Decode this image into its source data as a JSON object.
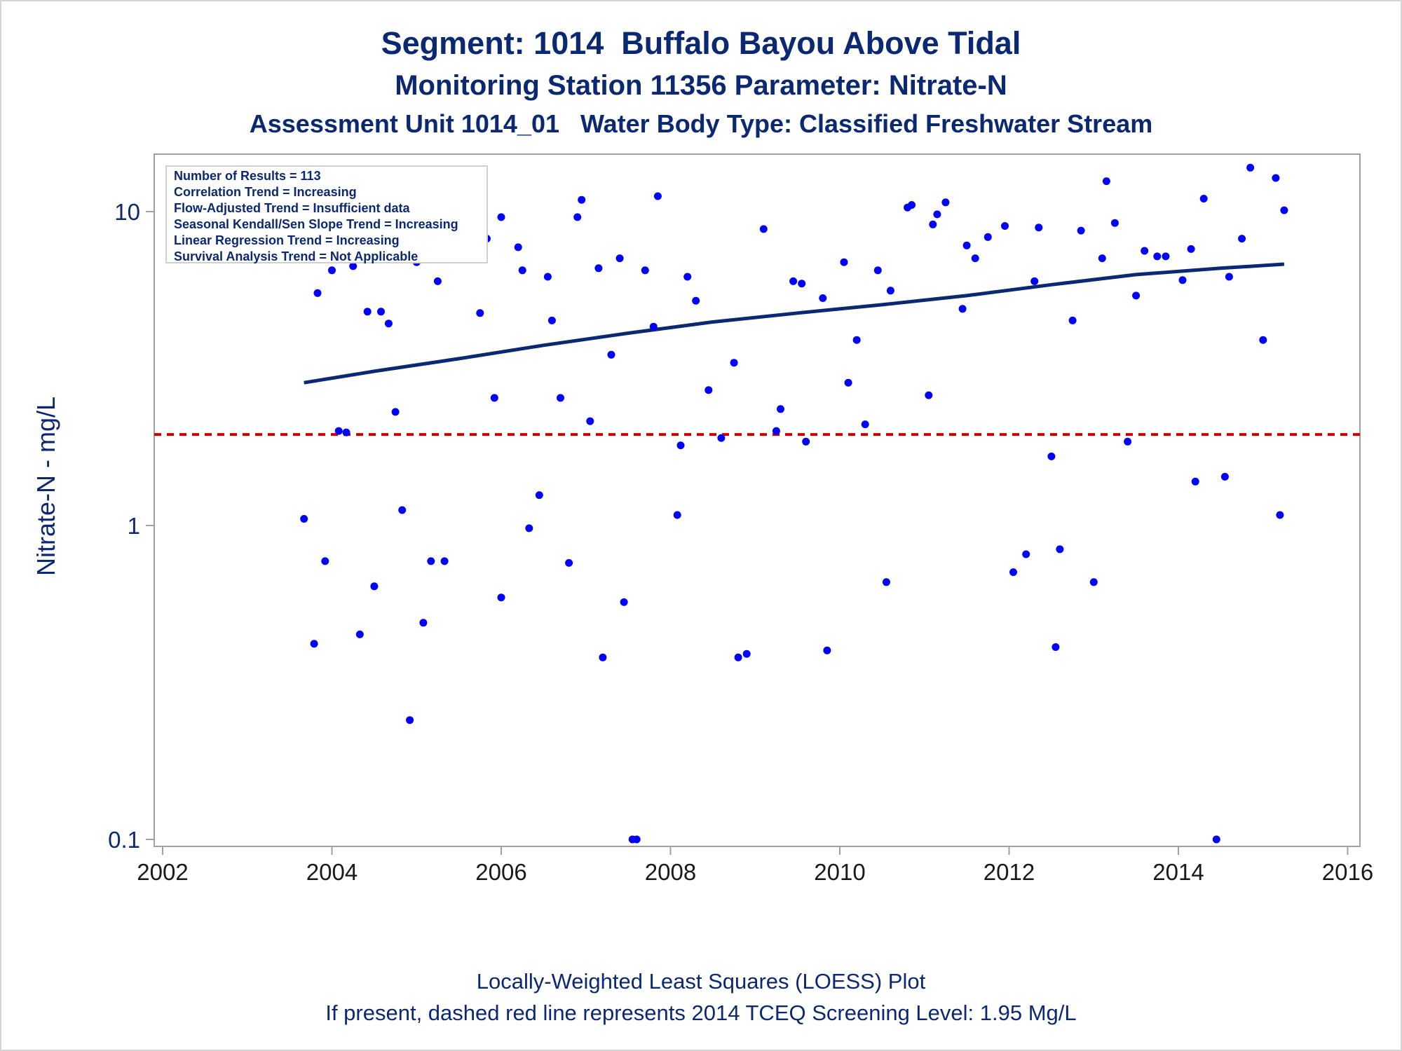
{
  "titles": {
    "line1": "Segment: 1014  Buffalo Bayou Above Tidal",
    "line2": "Monitoring Station 11356 Parameter: Nitrate-N",
    "line3": "Assessment Unit 1014_01   Water Body Type: Classified Freshwater Stream"
  },
  "stats": {
    "line1": "Number of Results = 113",
    "line2": "Correlation Trend = Increasing",
    "line3": "Flow-Adjusted Trend = Insufficient data",
    "line4": "Seasonal Kendall/Sen Slope Trend = Increasing",
    "line5": "Linear Regression Trend = Increasing",
    "line6": "Survival Analysis Trend = Not Applicable"
  },
  "footnotes": {
    "line1": "Locally-Weighted Least Squares (LOESS) Plot",
    "line2": "If present, dashed red line represents 2014 TCEQ Screening Level: 1.95 Mg/L"
  },
  "colors": {
    "text": "#0b2873",
    "points": "#0000ff",
    "trend": "#0b2873",
    "screening": "#cc0000",
    "axis": "#a0a0a0"
  },
  "chart_data": {
    "type": "scatter",
    "ylabel": "Nitrate-N - mg/L",
    "xlabel": "",
    "y_scale": "log",
    "xlim": [
      2002,
      2016
    ],
    "ylim": [
      0.1,
      15
    ],
    "x_ticks": [
      "2002",
      "2004",
      "2006",
      "2008",
      "2010",
      "2012",
      "2014",
      "2016"
    ],
    "y_ticks": [
      "0.1",
      "1",
      "10"
    ],
    "series": [
      {
        "kind": "points",
        "points": [
          [
            2003.67,
            1.05
          ],
          [
            2003.79,
            0.42
          ],
          [
            2003.83,
            5.5
          ],
          [
            2003.92,
            0.77
          ],
          [
            2004.0,
            6.5
          ],
          [
            2004.08,
            2.0
          ],
          [
            2004.17,
            1.98
          ],
          [
            2004.25,
            6.7
          ],
          [
            2004.33,
            0.45
          ],
          [
            2004.42,
            4.8
          ],
          [
            2004.5,
            0.64
          ],
          [
            2004.58,
            4.8
          ],
          [
            2004.67,
            4.4
          ],
          [
            2004.75,
            2.3
          ],
          [
            2004.83,
            1.12
          ],
          [
            2004.92,
            0.24
          ],
          [
            2005.0,
            6.9
          ],
          [
            2005.08,
            0.49
          ],
          [
            2005.17,
            0.77
          ],
          [
            2005.25,
            6.0
          ],
          [
            2005.33,
            0.77
          ],
          [
            2005.75,
            4.75
          ],
          [
            2005.83,
            8.2
          ],
          [
            2005.92,
            2.55
          ],
          [
            2006.0,
            0.59
          ],
          [
            2006.0,
            9.6
          ],
          [
            2006.2,
            7.7
          ],
          [
            2006.25,
            6.5
          ],
          [
            2006.33,
            0.98
          ],
          [
            2006.45,
            1.25
          ],
          [
            2006.55,
            6.2
          ],
          [
            2006.6,
            4.5
          ],
          [
            2006.7,
            2.55
          ],
          [
            2006.8,
            0.76
          ],
          [
            2006.9,
            9.6
          ],
          [
            2006.95,
            10.9
          ],
          [
            2007.05,
            2.15
          ],
          [
            2007.15,
            6.6
          ],
          [
            2007.2,
            0.38
          ],
          [
            2007.3,
            3.5
          ],
          [
            2007.4,
            7.1
          ],
          [
            2007.45,
            0.57
          ],
          [
            2007.55,
            0.1
          ],
          [
            2007.6,
            0.1
          ],
          [
            2007.7,
            6.5
          ],
          [
            2007.8,
            4.3
          ],
          [
            2007.85,
            11.2
          ],
          [
            2008.08,
            1.08
          ],
          [
            2008.12,
            1.8
          ],
          [
            2008.2,
            6.2
          ],
          [
            2008.3,
            5.2
          ],
          [
            2008.45,
            2.7
          ],
          [
            2008.6,
            1.9
          ],
          [
            2008.75,
            3.3
          ],
          [
            2008.8,
            0.38
          ],
          [
            2008.9,
            0.39
          ],
          [
            2009.1,
            8.8
          ],
          [
            2009.25,
            2.0
          ],
          [
            2009.3,
            2.35
          ],
          [
            2009.45,
            6.0
          ],
          [
            2009.55,
            5.9
          ],
          [
            2009.6,
            1.85
          ],
          [
            2009.8,
            5.3
          ],
          [
            2009.85,
            0.4
          ],
          [
            2010.05,
            6.9
          ],
          [
            2010.1,
            2.85
          ],
          [
            2010.2,
            3.9
          ],
          [
            2010.3,
            2.1
          ],
          [
            2010.45,
            6.5
          ],
          [
            2010.55,
            0.66
          ],
          [
            2010.6,
            5.6
          ],
          [
            2010.8,
            10.3
          ],
          [
            2010.85,
            10.5
          ],
          [
            2011.05,
            2.6
          ],
          [
            2011.1,
            9.1
          ],
          [
            2011.15,
            9.8
          ],
          [
            2011.25,
            10.7
          ],
          [
            2011.45,
            4.9
          ],
          [
            2011.5,
            7.8
          ],
          [
            2011.6,
            7.1
          ],
          [
            2011.75,
            8.3
          ],
          [
            2011.95,
            9.0
          ],
          [
            2012.05,
            0.71
          ],
          [
            2012.2,
            0.81
          ],
          [
            2012.3,
            6.0
          ],
          [
            2012.35,
            8.9
          ],
          [
            2012.5,
            1.66
          ],
          [
            2012.55,
            0.41
          ],
          [
            2012.6,
            0.84
          ],
          [
            2012.75,
            4.5
          ],
          [
            2012.85,
            8.7
          ],
          [
            2013.0,
            0.66
          ],
          [
            2013.1,
            7.1
          ],
          [
            2013.15,
            12.5
          ],
          [
            2013.25,
            9.2
          ],
          [
            2013.4,
            1.85
          ],
          [
            2013.5,
            5.4
          ],
          [
            2013.6,
            7.5
          ],
          [
            2013.75,
            7.2
          ],
          [
            2013.85,
            7.2
          ],
          [
            2014.05,
            6.05
          ],
          [
            2014.15,
            7.6
          ],
          [
            2014.2,
            1.38
          ],
          [
            2014.3,
            11.0
          ],
          [
            2014.45,
            0.1
          ],
          [
            2014.55,
            1.43
          ],
          [
            2014.6,
            6.2
          ],
          [
            2014.75,
            8.2
          ],
          [
            2014.85,
            13.8
          ],
          [
            2015.0,
            3.9
          ],
          [
            2015.15,
            12.8
          ],
          [
            2015.2,
            1.08
          ],
          [
            2015.25,
            10.1
          ]
        ]
      },
      {
        "kind": "line",
        "points": [
          [
            2003.67,
            2.85
          ],
          [
            2004.5,
            3.1
          ],
          [
            2005.5,
            3.4
          ],
          [
            2006.5,
            3.75
          ],
          [
            2007.5,
            4.1
          ],
          [
            2008.5,
            4.45
          ],
          [
            2009.5,
            4.75
          ],
          [
            2010.5,
            5.05
          ],
          [
            2011.5,
            5.4
          ],
          [
            2012.5,
            5.85
          ],
          [
            2013.5,
            6.3
          ],
          [
            2014.5,
            6.6
          ],
          [
            2015.25,
            6.8
          ]
        ]
      },
      {
        "kind": "reference",
        "value": 1.95
      }
    ]
  }
}
